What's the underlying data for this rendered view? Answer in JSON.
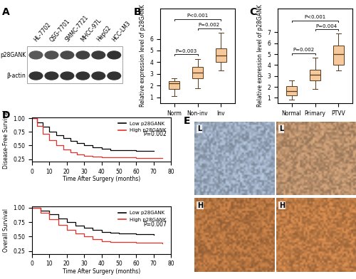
{
  "chart_data": [
    {
      "panel": "B",
      "type": "box",
      "y_label": "Relative expression level of p28GANK",
      "categories": [
        "Norm",
        "Non-inv",
        "Inv"
      ],
      "whisker_low": [
        1.1,
        1.8,
        3.3
      ],
      "q1": [
        1.7,
        2.6,
        4.0
      ],
      "median": [
        2.2,
        3.1,
        4.6
      ],
      "q3": [
        2.4,
        3.6,
        5.2
      ],
      "whisker_high": [
        2.6,
        4.3,
        6.5
      ],
      "color": "#f5c99b",
      "ylim": [
        0.5,
        8.6
      ],
      "yticks": [
        1,
        2,
        3,
        4,
        5,
        6
      ],
      "comparisons": [
        {
          "between": [
            "Norm",
            "Non-inv"
          ],
          "label": "P=0.003"
        },
        {
          "between": [
            "Non-inv",
            "Inv"
          ],
          "label": "P=0.002"
        },
        {
          "between": [
            "Norm",
            "Inv"
          ],
          "label": "P<0.001"
        }
      ]
    },
    {
      "panel": "C",
      "type": "box",
      "y_label": "Relative expression level of p28GANK",
      "categories": [
        "Normal",
        "Primary",
        "PTVV"
      ],
      "whisker_low": [
        0.8,
        1.8,
        3.5
      ],
      "q1": [
        1.2,
        2.6,
        4.0
      ],
      "median": [
        1.6,
        3.1,
        5.0
      ],
      "q3": [
        2.1,
        3.6,
        5.8
      ],
      "whisker_high": [
        2.6,
        4.7,
        6.9
      ],
      "color": "#f5c99b",
      "ylim": [
        0.5,
        9.2
      ],
      "yticks": [
        1,
        2,
        3,
        4,
        5,
        6,
        7
      ],
      "comparisons": [
        {
          "between": [
            "Normal",
            "Primary"
          ],
          "label": "P=0.002"
        },
        {
          "between": [
            "Primary",
            "PTVV"
          ],
          "label": "P=0.004"
        },
        {
          "between": [
            "Normal",
            "PTVV"
          ],
          "label": "P<0.001"
        }
      ]
    },
    {
      "panel": "D",
      "type": "line",
      "y_label": "Disease-Free Survival",
      "x_label": "Time After Surgery (months)",
      "series": [
        {
          "name": "Low p28GANK",
          "color": "#000000",
          "line_style": "steps",
          "x": [
            0,
            3,
            6,
            10,
            14,
            18,
            22,
            26,
            30,
            35,
            40,
            45,
            50,
            60,
            70
          ],
          "values": [
            1.0,
            0.93,
            0.85,
            0.76,
            0.69,
            0.63,
            0.58,
            0.54,
            0.51,
            0.47,
            0.44,
            0.42,
            0.41,
            0.4,
            0.4
          ]
        },
        {
          "name": "High p28GANK",
          "color": "#e8302a",
          "line_style": "steps",
          "x": [
            0,
            3,
            6,
            10,
            14,
            18,
            22,
            26,
            30,
            35,
            40,
            50,
            60,
            75
          ],
          "values": [
            1.0,
            0.86,
            0.72,
            0.6,
            0.5,
            0.43,
            0.37,
            0.33,
            0.31,
            0.29,
            0.28,
            0.28,
            0.27,
            0.27
          ]
        }
      ],
      "xlim": [
        0,
        80
      ],
      "xticks": [
        0,
        10,
        20,
        30,
        40,
        50,
        60,
        70,
        80
      ],
      "ylim": [
        0.2,
        1.02
      ],
      "yticks": [
        0.25,
        {
          "value": 0.5,
          "label": "0.50"
        },
        0.75,
        {
          "value": 1.0,
          "label": "1.00"
        }
      ],
      "legend": "upper right",
      "annotations": [
        "P=0.002"
      ]
    },
    {
      "type": "line",
      "y_label": "Overall Survival",
      "x_label": "Time After Surgery (months)",
      "series": [
        {
          "name": "Low p28GANK",
          "color": "#000000",
          "line_style": "steps",
          "x": [
            0,
            5,
            10,
            15,
            20,
            25,
            30,
            35,
            40,
            45,
            50,
            60,
            70
          ],
          "values": [
            1.0,
            0.95,
            0.88,
            0.81,
            0.75,
            0.69,
            0.65,
            0.61,
            0.58,
            0.56,
            0.55,
            0.54,
            0.53
          ]
        },
        {
          "name": "High p28GANK",
          "color": "#e8302a",
          "line_style": "steps",
          "x": [
            0,
            5,
            10,
            15,
            20,
            25,
            30,
            35,
            40,
            45,
            50,
            60,
            75
          ],
          "values": [
            1.0,
            0.91,
            0.8,
            0.7,
            0.61,
            0.55,
            0.5,
            0.46,
            0.42,
            0.41,
            0.4,
            0.39,
            0.38
          ]
        }
      ],
      "xlim": [
        0,
        80
      ],
      "xticks": [
        0,
        10,
        20,
        30,
        40,
        50,
        60,
        70,
        80
      ],
      "ylim": [
        0.2,
        1.02
      ],
      "yticks": [
        0.25,
        {
          "value": 0.5,
          "label": "0.50"
        },
        0.75,
        {
          "value": 1.0,
          "label": "1.00"
        }
      ],
      "legend": "upper right",
      "annotations": [
        "P=0.007"
      ]
    }
  ],
  "blot": {
    "panel": "A",
    "lanes": [
      "HL-7702",
      "QSG-7701",
      "SMMC-7721",
      "MHCC-97L",
      "HepG2",
      "HCC-LM3"
    ],
    "rows": [
      "p28GANK",
      "β-actin"
    ]
  },
  "ihc": {
    "panel": "E",
    "images": [
      "L",
      "L",
      "H",
      "H"
    ]
  }
}
